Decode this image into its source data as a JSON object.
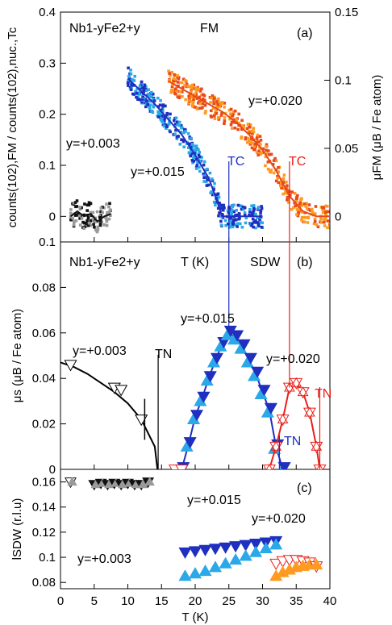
{
  "chart_data": [
    {
      "panel": "a",
      "type": "scatter",
      "panel_label": "(a)",
      "annotation_left": "Nb1-yFe2+y",
      "annotation_phase": "FM",
      "ylabel_left": "counts(102),FM / counts(102),nuc.,Tc",
      "ylabel_right": "μFM (μB / Fe atom)",
      "ylim_left": [
        -0.05,
        0.4
      ],
      "yticks_left": [
        "0",
        "0.1",
        "0.2",
        "0.3",
        "0.4"
      ],
      "ylim_right": [
        -0.0187,
        0.15
      ],
      "yticks_right": [
        "0",
        "0.05",
        "0.1",
        "0.15"
      ],
      "xlim": [
        0,
        40
      ],
      "series": [
        {
          "label": "y=+0.003",
          "color": "#111111",
          "color_alt": "#9a9a9a",
          "x": [
            1.5,
            2.5,
            3.5,
            4.5,
            5.5,
            6.5,
            7.5
          ],
          "y": [
            0.0,
            0.01,
            0.0,
            0.005,
            -0.01,
            0.0,
            0.005
          ]
        },
        {
          "label": "y=+0.015",
          "color": "#1f2fbf",
          "color_alt": "#2aa8e8",
          "x": [
            10,
            12,
            14,
            16,
            18,
            20,
            22,
            23,
            24,
            25,
            26,
            28,
            30
          ],
          "y": [
            0.27,
            0.245,
            0.22,
            0.19,
            0.16,
            0.12,
            0.075,
            0.04,
            0.0,
            0.0,
            0.0,
            0.0,
            0.0
          ]
        },
        {
          "label": "y=+0.020",
          "color": "#e84a1a",
          "color_alt": "#ff9a20",
          "x": [
            16,
            18,
            20,
            22,
            24,
            26,
            28,
            30,
            32,
            34,
            36,
            38,
            40
          ],
          "y": [
            0.265,
            0.25,
            0.235,
            0.22,
            0.205,
            0.185,
            0.16,
            0.13,
            0.09,
            0.04,
            0.01,
            0.0,
            0.0
          ]
        }
      ],
      "markers": [
        {
          "label": "TC",
          "x": 25,
          "color": "#1f2fbf"
        },
        {
          "label": "TC",
          "x": 34,
          "color": "#e8201a"
        }
      ]
    },
    {
      "panel": "b",
      "type": "scatter",
      "panel_label": "(b)",
      "annotation_left": "Nb1-yFe2+y",
      "annotation_axis": "T (K)",
      "annotation_phase": "SDW",
      "ylabel": "μs (μB / Fe atom)",
      "ylim": [
        0,
        0.1
      ],
      "yticks": [
        "0",
        "0.02",
        "0.04",
        "0.06",
        "0.08",
        "0.1"
      ],
      "xlim": [
        0,
        40
      ],
      "series": [
        {
          "label": "y=+0.003",
          "color": "#000000",
          "x": [
            0,
            2,
            4,
            6,
            8,
            10,
            12,
            14,
            14.4
          ],
          "y": [
            0.047,
            0.045,
            0.042,
            0.038,
            0.034,
            0.029,
            0.022,
            0.01,
            0.0
          ]
        },
        {
          "label": "y=+0.015",
          "color": "#1f2fbf",
          "color_alt": "#2aa8e8",
          "x": [
            18,
            19,
            20,
            21,
            22,
            23,
            24,
            25,
            26,
            27,
            28,
            29,
            30,
            31,
            32,
            33
          ],
          "y": [
            0.0,
            0.011,
            0.023,
            0.031,
            0.04,
            0.048,
            0.055,
            0.06,
            0.058,
            0.054,
            0.048,
            0.042,
            0.034,
            0.026,
            0.01,
            0.0
          ]
        },
        {
          "label": "y=+0.020",
          "color": "#e8201a",
          "x": [
            31,
            32,
            33,
            34,
            35,
            36,
            37,
            38,
            38.5
          ],
          "y": [
            0.0,
            0.01,
            0.022,
            0.036,
            0.038,
            0.034,
            0.025,
            0.01,
            0.0
          ]
        }
      ],
      "open_points": [
        {
          "x": 1.5,
          "y": 0.046
        },
        {
          "x": 8.0,
          "y": 0.036
        },
        {
          "x": 9.0,
          "y": 0.035
        },
        {
          "x": 12.0,
          "y": 0.022
        },
        {
          "x": 17.0,
          "y": 0.0
        },
        {
          "x": 18.0,
          "y": 0.0
        }
      ],
      "markers": [
        {
          "label": "TN",
          "x": 14.5,
          "color": "#000000"
        },
        {
          "label": "TN",
          "x": 32.5,
          "color": "#1f2fbf"
        },
        {
          "label": "TN",
          "x": 38.5,
          "color": "#e8201a"
        }
      ]
    },
    {
      "panel": "c",
      "type": "scatter",
      "panel_label": "(c)",
      "ylabel": "lSDW (r.l.u)",
      "ylim": [
        0.075,
        0.17
      ],
      "yticks": [
        "0.08",
        "0.1",
        "0.12",
        "0.14",
        "0.16"
      ],
      "xlabel": "T (K)",
      "xlim": [
        0,
        40
      ],
      "xticks": [
        "0",
        "5",
        "10",
        "15",
        "20",
        "25",
        "30",
        "35",
        "40"
      ],
      "series": [
        {
          "label": "y=+0.003",
          "color": "#111111",
          "color_alt": "#9a9a9a",
          "x": [
            1.5,
            5,
            6,
            7,
            8,
            9,
            10,
            11,
            12,
            13
          ],
          "y": [
            0.16,
            0.158,
            0.159,
            0.158,
            0.159,
            0.158,
            0.159,
            0.158,
            0.158,
            0.16
          ]
        },
        {
          "label": "y=+0.015",
          "color": "#1f2fbf",
          "color_alt": "#2aa8e8",
          "x": [
            18.5,
            20,
            21.5,
            23,
            24.5,
            26,
            27.5,
            29,
            30.5,
            32
          ],
          "y": [
            0.104,
            0.105,
            0.106,
            0.107,
            0.108,
            0.109,
            0.11,
            0.111,
            0.112,
            0.113
          ],
          "y_alt": [
            0.085,
            0.087,
            0.089,
            0.092,
            0.095,
            0.098,
            0.101,
            0.104,
            0.107,
            0.11
          ]
        },
        {
          "label": "y=+0.020",
          "color": "#e8201a",
          "color_alt": "#ff9a20",
          "x": [
            32,
            33,
            34,
            35,
            36,
            37,
            38
          ],
          "y": [
            0.095,
            0.097,
            0.098,
            0.098,
            0.097,
            0.096,
            0.093
          ],
          "y_alt": [
            0.085,
            0.088,
            0.09,
            0.092,
            0.093,
            0.094,
            0.094
          ]
        }
      ]
    }
  ]
}
